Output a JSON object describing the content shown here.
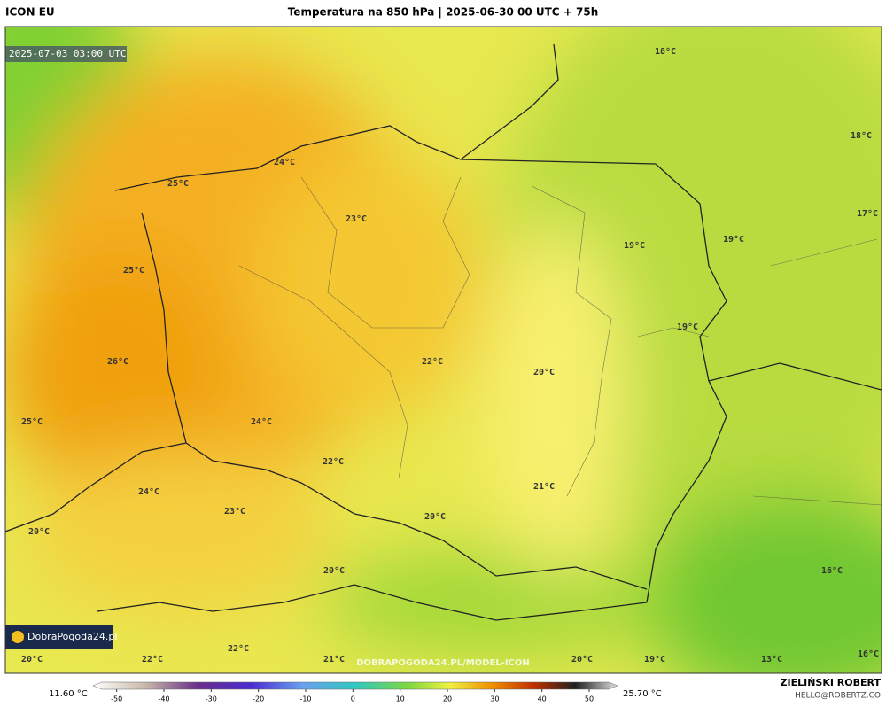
{
  "header": {
    "model": "ICON EU",
    "title": "Temperatura na 850 hPa | 2025-06-30 00 UTC + 75h"
  },
  "map": {
    "valid_time": "2025-07-03 03:00 UTC",
    "watermark": "DOBRAPOGODA24.PL/MODEL-ICON",
    "logo": "DobraPogoda24.pl",
    "labels": [
      "18°C",
      "18°C",
      "25°C",
      "24°C",
      "23°C",
      "17°C",
      "19°C",
      "19°C",
      "25°C",
      "19°C",
      "26°C",
      "22°C",
      "20°C",
      "25°C",
      "24°C",
      "22°C",
      "24°C",
      "21°C",
      "23°C",
      "20°C",
      "20°C",
      "20°C",
      "16°C",
      "20°C",
      "22°C",
      "22°C",
      "21°C",
      "20°C",
      "19°C",
      "13°C",
      "16°C"
    ]
  },
  "colorbar": {
    "min_label": "11.60 °C",
    "max_label": "25.70 °C",
    "lim": [
      -55,
      56
    ],
    "ticks": [
      -50,
      -40,
      -30,
      -20,
      -10,
      0,
      10,
      20,
      30,
      40,
      50
    ]
  },
  "footer": {
    "author": "ZIELIŃSKI ROBERT",
    "email": "HELLO@ROBERTZ.CO"
  }
}
